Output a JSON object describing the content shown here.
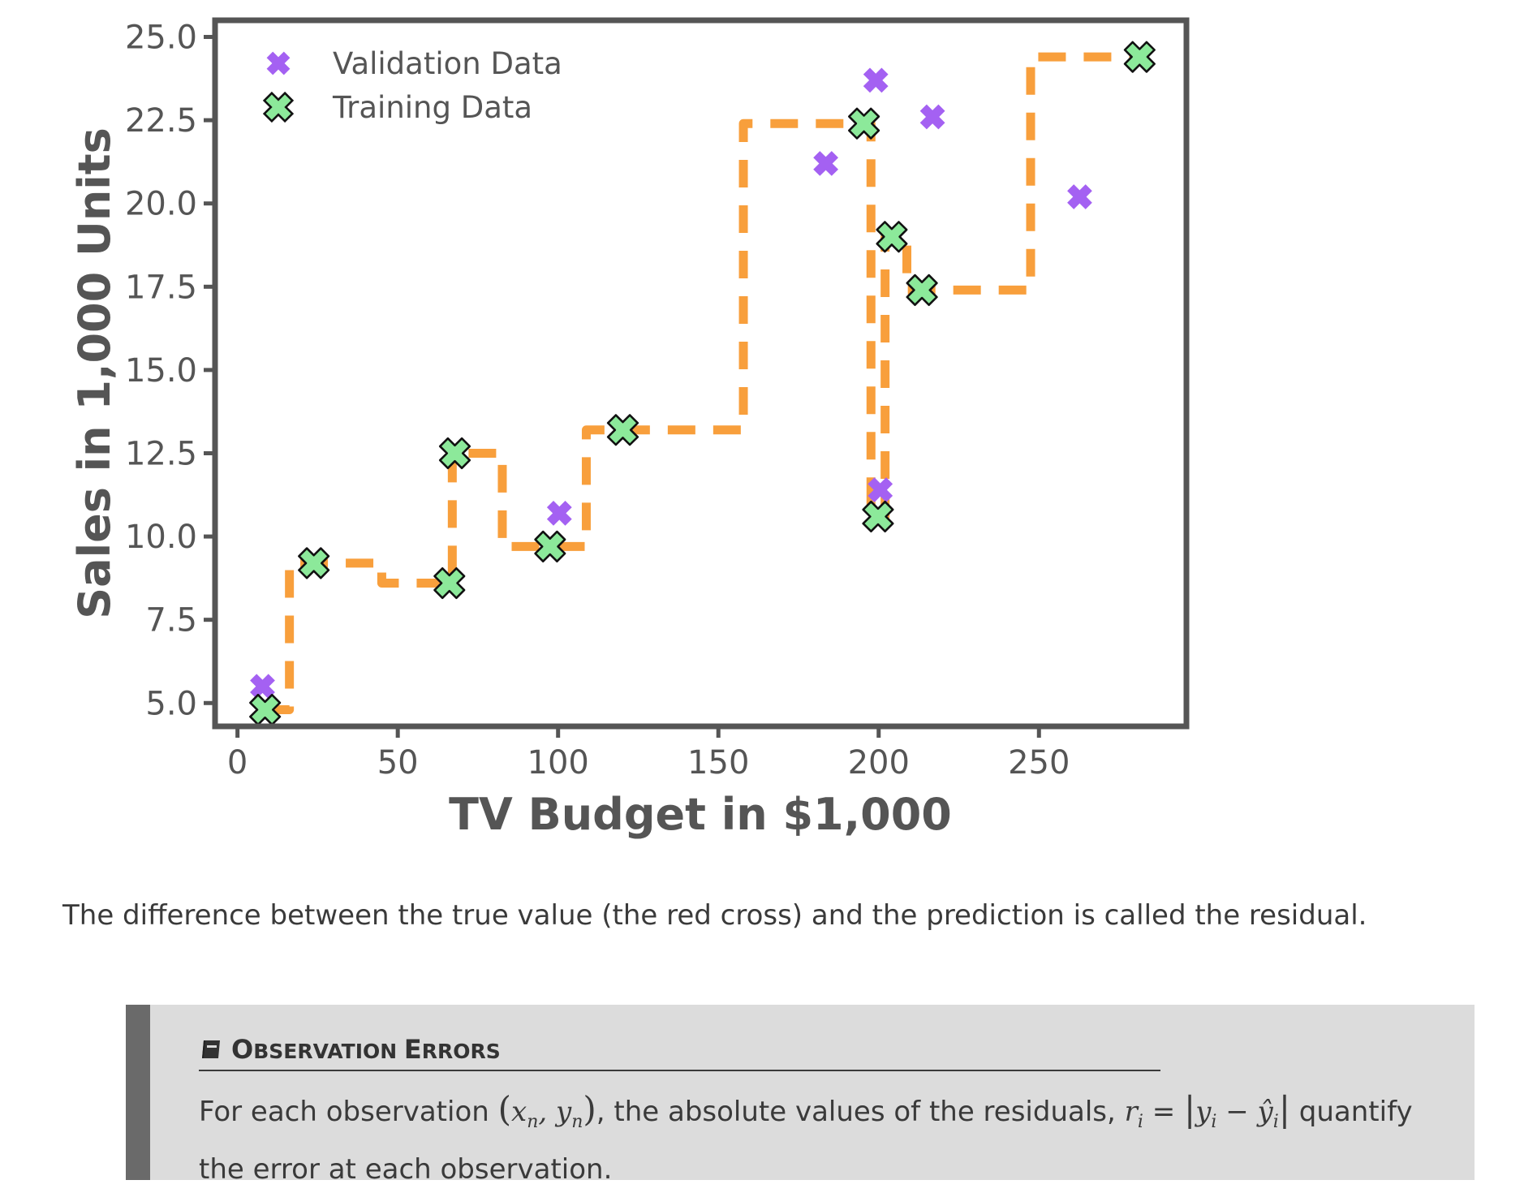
{
  "chart_data": {
    "type": "scatter",
    "xlabel": "TV Budget in $1,000",
    "ylabel": "Sales in 1,000 Units",
    "xlim": [
      -7,
      296
    ],
    "ylim": [
      4.3,
      25.5
    ],
    "xticks": [
      0,
      50,
      100,
      150,
      200,
      250
    ],
    "yticks": [
      5.0,
      7.5,
      10.0,
      12.5,
      15.0,
      17.5,
      20.0,
      22.5,
      25.0
    ],
    "xtick_labels": [
      "0",
      "50",
      "100",
      "150",
      "200",
      "250"
    ],
    "ytick_labels": [
      "5.0",
      "7.5",
      "10.0",
      "12.5",
      "15.0",
      "17.5",
      "20.0",
      "22.5",
      "25.0"
    ],
    "legend_position": "top-left",
    "series": [
      {
        "name": "Validation Data",
        "color": "#a461f2",
        "marker": "x-filled",
        "points": [
          [
            7.8,
            5.5
          ],
          [
            100.4,
            10.7
          ],
          [
            183.5,
            21.2
          ],
          [
            199.1,
            23.7
          ],
          [
            200.5,
            11.4
          ],
          [
            216.8,
            22.6
          ],
          [
            262.7,
            20.2
          ]
        ]
      },
      {
        "name": "Training Data",
        "color": "#8ce99a",
        "marker": "x-outlined",
        "points": [
          [
            8.6,
            4.8
          ],
          [
            23.8,
            9.2
          ],
          [
            66.1,
            8.6
          ],
          [
            67.8,
            12.5
          ],
          [
            97.5,
            9.7
          ],
          [
            120.2,
            13.2
          ],
          [
            195.4,
            22.4
          ],
          [
            199.8,
            10.6
          ],
          [
            204.1,
            19.0
          ],
          [
            213.5,
            17.4
          ],
          [
            281.4,
            24.4
          ]
        ]
      }
    ],
    "fit_line": {
      "style": "dashed",
      "color": "#f89f3c",
      "steps": [
        [
          8.6,
          4.8
        ],
        [
          16.2,
          4.8
        ],
        [
          16.2,
          9.2
        ],
        [
          45.0,
          9.2
        ],
        [
          45.0,
          8.6
        ],
        [
          67.0,
          8.6
        ],
        [
          67.0,
          12.5
        ],
        [
          82.6,
          12.5
        ],
        [
          82.6,
          9.7
        ],
        [
          108.8,
          9.7
        ],
        [
          108.8,
          13.2
        ],
        [
          157.8,
          13.2
        ],
        [
          157.8,
          22.4
        ],
        [
          197.6,
          22.4
        ],
        [
          197.6,
          10.6
        ],
        [
          202.0,
          10.6
        ],
        [
          202.0,
          19.0
        ],
        [
          208.8,
          19.0
        ],
        [
          208.8,
          17.4
        ],
        [
          247.4,
          17.4
        ],
        [
          247.4,
          24.4
        ],
        [
          281.4,
          24.4
        ]
      ]
    }
  },
  "caption": "The difference between the true value (the red cross) and the prediction is called the residual.",
  "admonition": {
    "icon": "book-icon",
    "title_parts": [
      {
        "text": "O",
        "size": "big"
      },
      {
        "text": "BSERVATION ",
        "size": "small"
      },
      {
        "text": "E",
        "size": "big"
      },
      {
        "text": "RRORS",
        "size": "small"
      }
    ],
    "body_before": "For each observation ",
    "body_middle": ", the absolute values of the residuals, ",
    "body_after": " quantify the error at each observation."
  }
}
